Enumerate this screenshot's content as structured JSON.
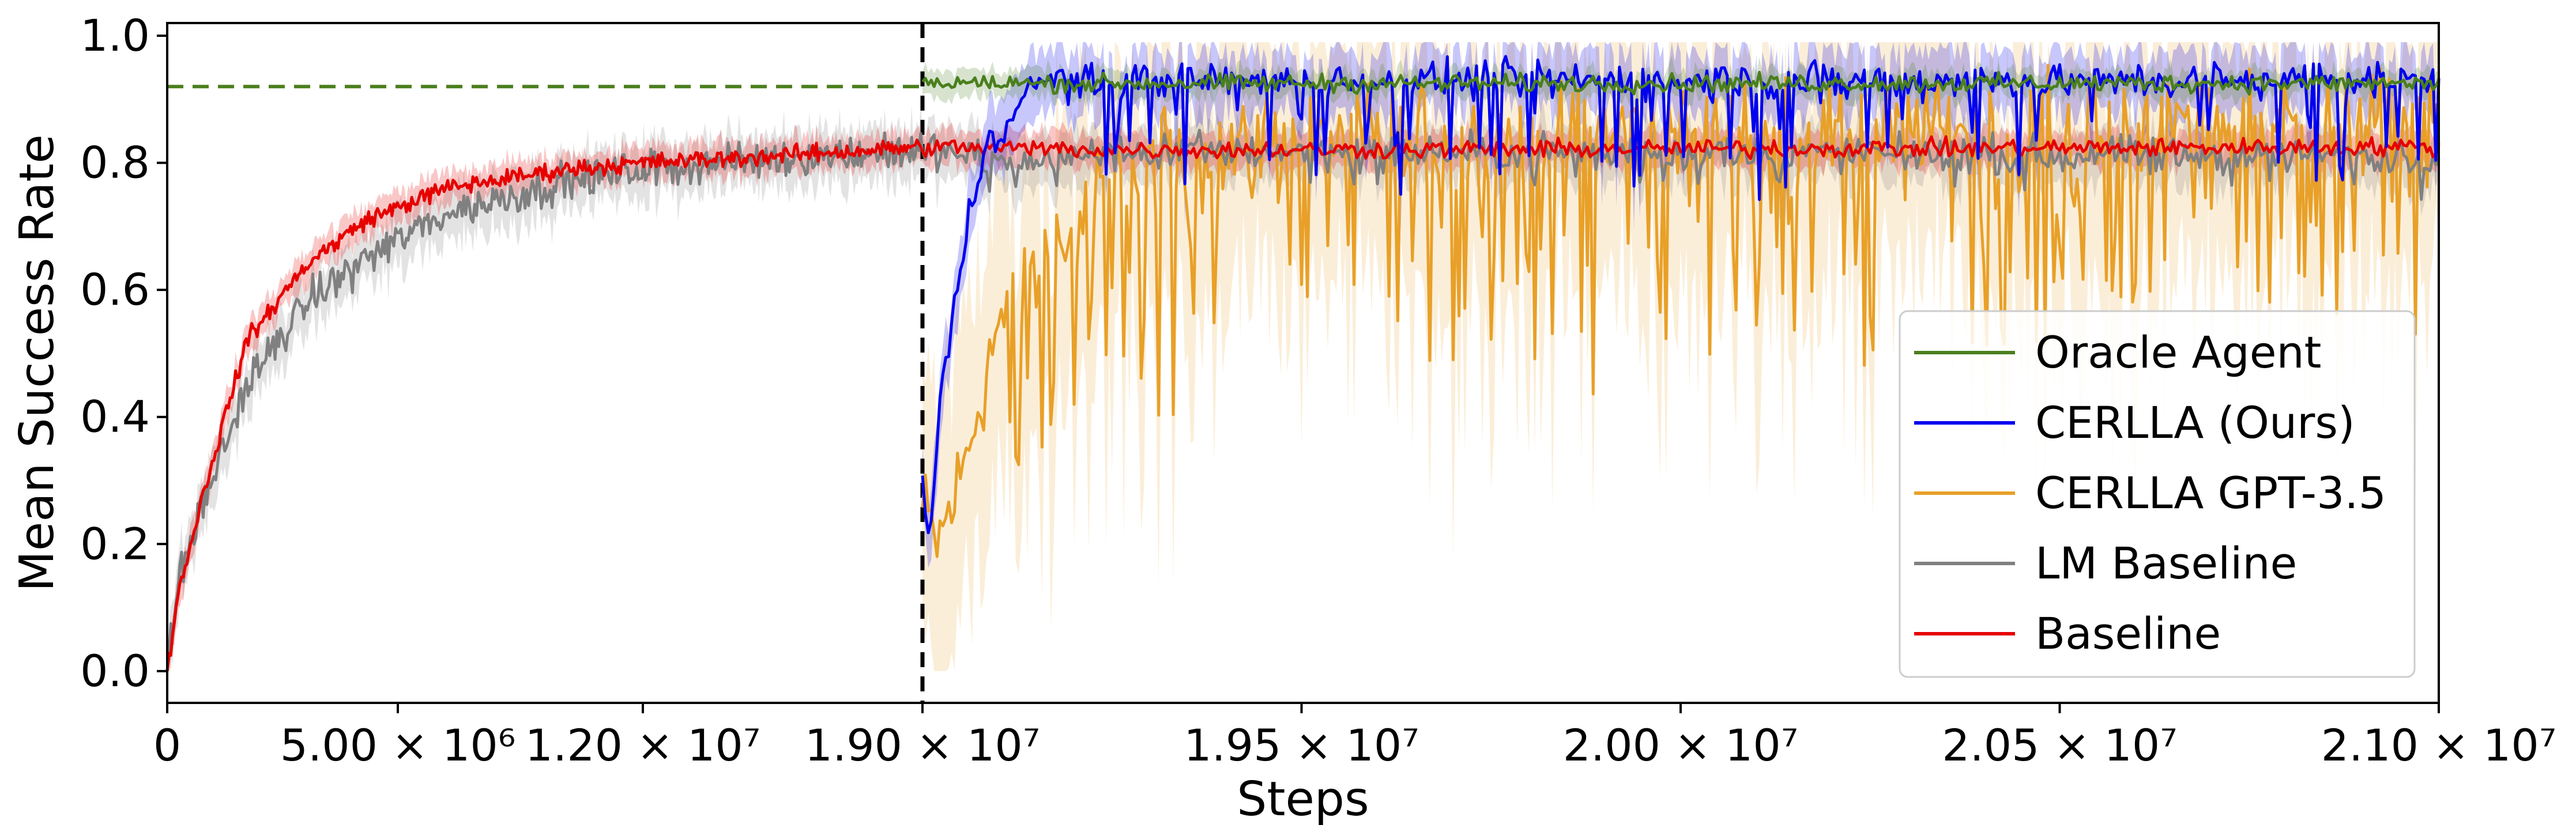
{
  "chart_data": {
    "type": "line",
    "title": "",
    "xlabel": "Steps",
    "ylabel": "Mean Success Rate",
    "ylim": [
      -0.05,
      1.02
    ],
    "y_ticks": [
      "0.0",
      "0.2",
      "0.4",
      "0.6",
      "0.8",
      "1.0"
    ],
    "x_ticks": [
      "0",
      "5.00 × 10⁶",
      "1.20 × 10⁷",
      "1.90 × 10⁷",
      "1.95 × 10⁷",
      "2.00 × 10⁷",
      "2.05 × 10⁷",
      "2.10 × 10⁷"
    ],
    "x_axis_note": "Broken-scale x axis: 0 to 1.90e7 on the left segment, 1.90e7 to 2.10e7 on the right segment",
    "phase_boundary_step": 19000000,
    "oracle_reference_level": 0.92,
    "legend_position": "center-right",
    "series": [
      {
        "name": "Oracle Agent",
        "color": "#4a7f1e",
        "phase": "post-boundary",
        "mean_level": 0.925,
        "noise": 0.012,
        "band": 0.02,
        "note": "Flat at about 0.92-0.94 across the right segment"
      },
      {
        "name": "CERLLA (Ours)",
        "color": "#0000ee",
        "phase": "post-boundary",
        "points": [
          [
            19000000,
            0.3
          ],
          [
            19010000,
            0.2
          ],
          [
            19025000,
            0.45
          ],
          [
            19040000,
            0.55
          ],
          [
            19060000,
            0.7
          ],
          [
            19080000,
            0.82
          ],
          [
            19100000,
            0.85
          ],
          [
            19130000,
            0.9
          ],
          [
            19160000,
            0.93
          ],
          [
            21000000,
            0.93
          ]
        ],
        "noise": 0.025,
        "dip_probability": 0.12,
        "band": 0.05
      },
      {
        "name": "CERLLA GPT-3.5",
        "color": "#e8a028",
        "phase": "post-boundary",
        "points": [
          [
            19000000,
            0.25
          ],
          [
            19020000,
            0.2
          ],
          [
            19050000,
            0.3
          ],
          [
            19080000,
            0.45
          ],
          [
            19100000,
            0.55
          ],
          [
            19150000,
            0.62
          ],
          [
            19200000,
            0.7
          ],
          [
            19300000,
            0.8
          ],
          [
            19500000,
            0.84
          ],
          [
            21000000,
            0.87
          ]
        ],
        "noise": 0.07,
        "band": 0.22
      },
      {
        "name": "LM Baseline",
        "color": "#808080",
        "phase": "full",
        "points": [
          [
            0,
            0.0
          ],
          [
            300000,
            0.15
          ],
          [
            1000000,
            0.28
          ],
          [
            2000000,
            0.45
          ],
          [
            3500000,
            0.58
          ],
          [
            5000000,
            0.65
          ],
          [
            7000000,
            0.72
          ],
          [
            10000000,
            0.77
          ],
          [
            12000000,
            0.79
          ],
          [
            15000000,
            0.805
          ],
          [
            19000000,
            0.82
          ],
          [
            19100000,
            0.8
          ],
          [
            19300000,
            0.82
          ],
          [
            21000000,
            0.81
          ]
        ],
        "noise": 0.025,
        "band": 0.04
      },
      {
        "name": "Baseline",
        "color": "#e60000",
        "phase": "full",
        "points": [
          [
            0,
            0.0
          ],
          [
            300000,
            0.13
          ],
          [
            1000000,
            0.3
          ],
          [
            2000000,
            0.52
          ],
          [
            3500000,
            0.64
          ],
          [
            5000000,
            0.71
          ],
          [
            7000000,
            0.76
          ],
          [
            10000000,
            0.79
          ],
          [
            12000000,
            0.8
          ],
          [
            15000000,
            0.81
          ],
          [
            19000000,
            0.825
          ],
          [
            19300000,
            0.82
          ],
          [
            21000000,
            0.825
          ]
        ],
        "noise": 0.012,
        "band": 0.025
      }
    ]
  }
}
